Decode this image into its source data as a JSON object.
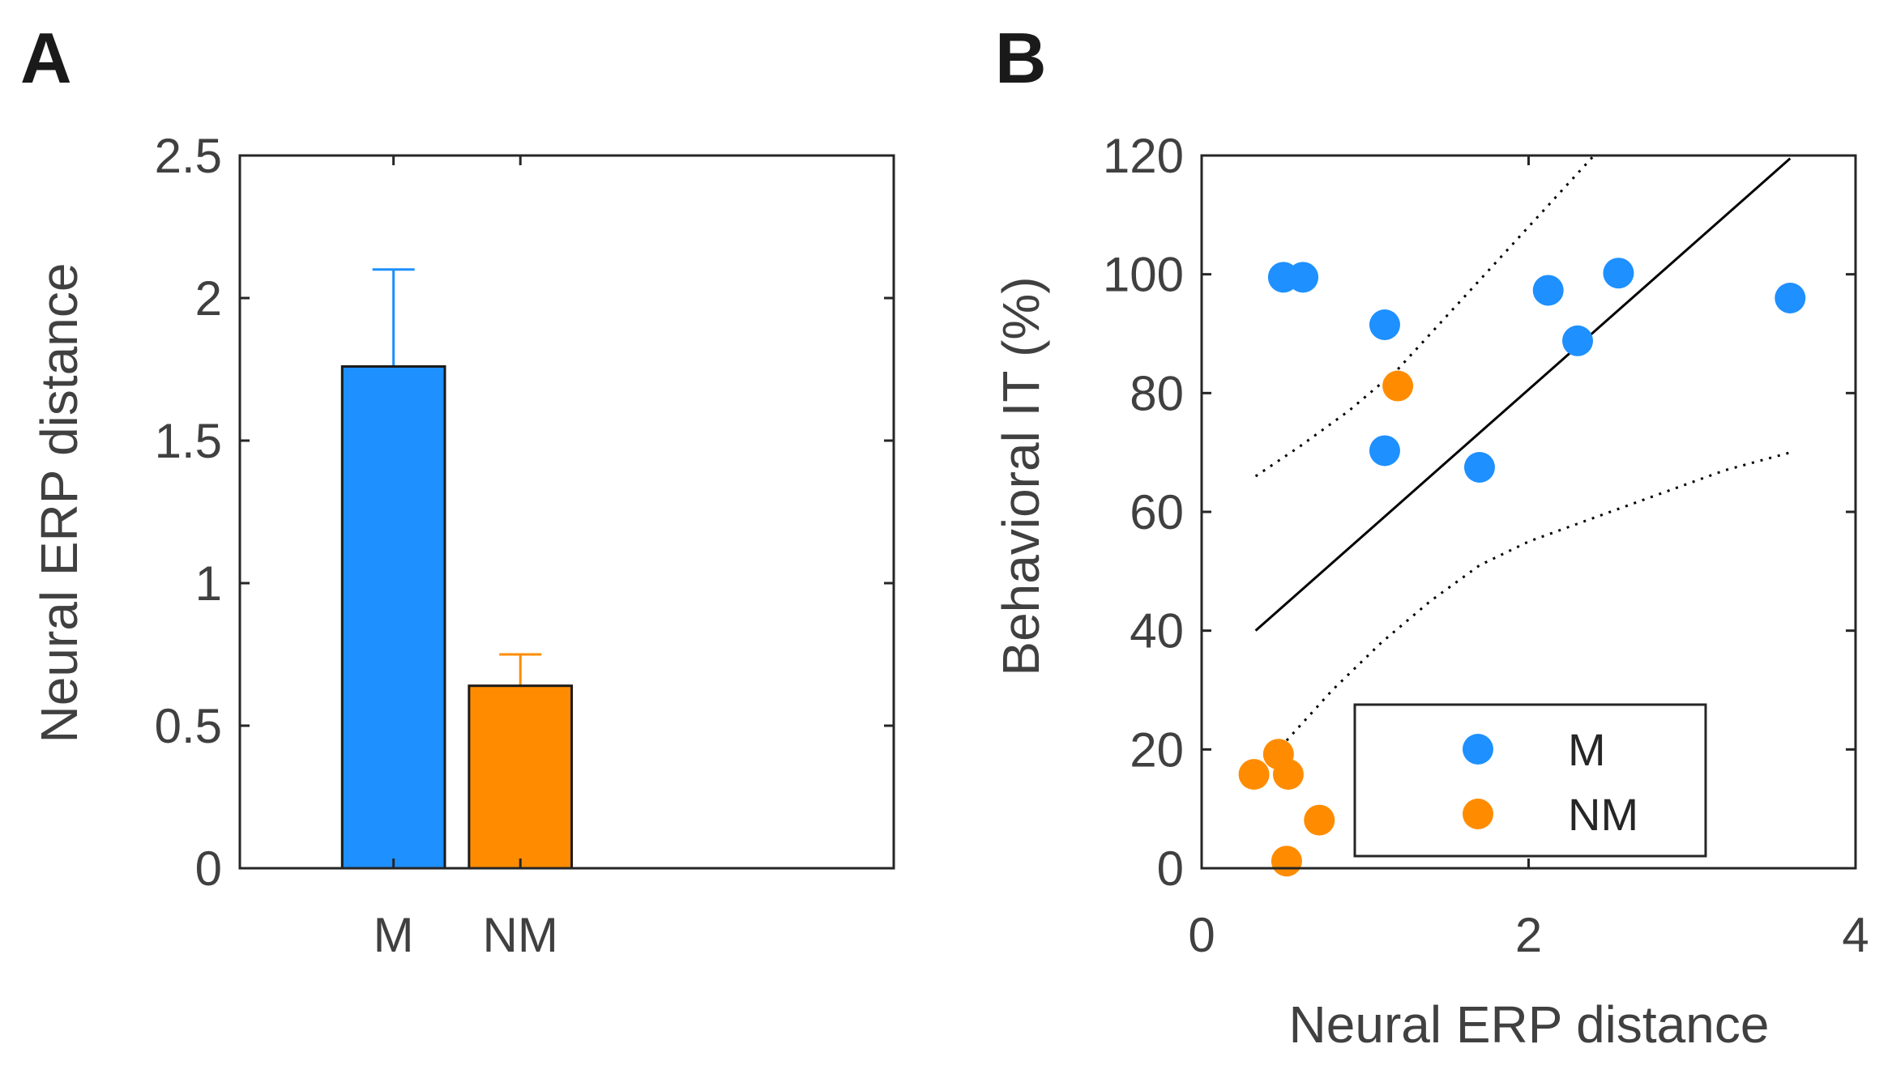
{
  "chart_data": [
    {
      "panel_label": "A",
      "type": "bar",
      "categories": [
        "M",
        "NM"
      ],
      "values": [
        1.76,
        0.64
      ],
      "errors": [
        0.34,
        0.11
      ],
      "colors": [
        "#1e90ff",
        "#ff8c00"
      ],
      "ylabel": "Neural ERP distance",
      "xlabel": "",
      "ylim": [
        0,
        2.5
      ],
      "yticks": [
        0,
        0.5,
        1,
        1.5,
        2,
        2.5
      ],
      "ytick_labels": [
        "0",
        "0.5",
        "1",
        "1.5",
        "2",
        "2.5"
      ],
      "grid": false
    },
    {
      "panel_label": "B",
      "type": "scatter",
      "xlabel": "Neural ERP distance",
      "ylabel": "Behavioral IT (%)",
      "xlim": [
        0,
        4
      ],
      "ylim": [
        0,
        120
      ],
      "xticks": [
        0,
        2,
        4
      ],
      "xtick_labels": [
        "0",
        "2",
        "4"
      ],
      "yticks": [
        0,
        20,
        40,
        60,
        80,
        100,
        120
      ],
      "ytick_labels": [
        "0",
        "20",
        "40",
        "60",
        "80",
        "100",
        "120"
      ],
      "grid": false,
      "legend_position": "bottom-right",
      "series": [
        {
          "name": "M",
          "color": "#1e90ff",
          "points": [
            [
              0.5,
              99.5
            ],
            [
              0.62,
              99.5
            ],
            [
              1.12,
              91.5
            ],
            [
              1.12,
              70.3
            ],
            [
              1.7,
              67.5
            ],
            [
              2.12,
              97.3
            ],
            [
              2.3,
              88.8
            ],
            [
              2.55,
              100.2
            ],
            [
              3.6,
              96
            ]
          ]
        },
        {
          "name": "NM",
          "color": "#ff8c00",
          "points": [
            [
              0.32,
              15.8
            ],
            [
              0.47,
              19.2
            ],
            [
              0.53,
              15.8
            ],
            [
              0.52,
              1.2
            ],
            [
              0.72,
              8.1
            ],
            [
              1.2,
              81.2
            ]
          ]
        }
      ],
      "fit_line": {
        "x": [
          0.33,
          3.6
        ],
        "y": [
          40,
          119.5
        ]
      },
      "ci_upper": {
        "x": [
          0.33,
          0.6,
          0.9,
          1.2,
          1.5,
          1.8,
          2.1,
          2.4
        ],
        "y": [
          66,
          71,
          77,
          84,
          93,
          102,
          111,
          120
        ]
      },
      "ci_lower": {
        "x": [
          0.52,
          0.8,
          1.1,
          1.4,
          1.7,
          2.0,
          2.4,
          2.8,
          3.2,
          3.6
        ],
        "y": [
          21.5,
          30,
          38,
          45,
          51,
          55,
          59,
          63,
          67,
          70
        ]
      }
    }
  ]
}
